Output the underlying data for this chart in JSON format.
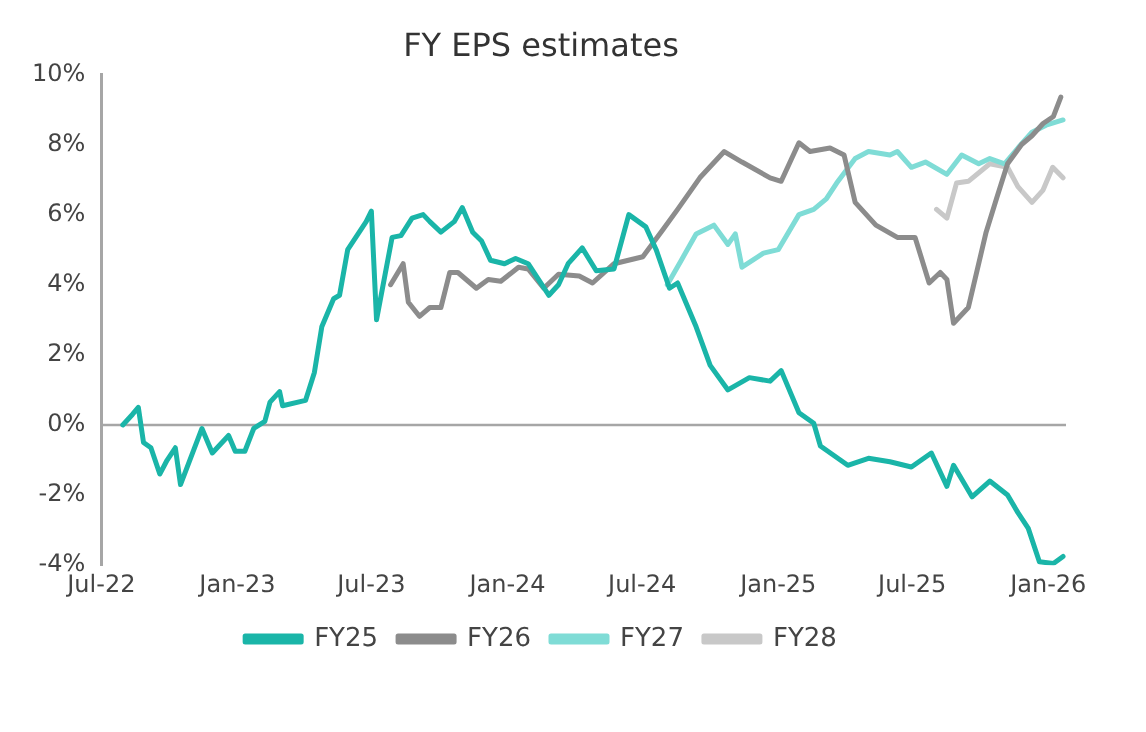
{
  "chart_data": {
    "type": "line",
    "title": "FY EPS estimates",
    "xlim": [
      "2022-07-01",
      "2026-01-25"
    ],
    "xticks": [
      {
        "value": "2022-07-01",
        "label": "Jul-22"
      },
      {
        "value": "2023-01-01",
        "label": "Jan-23"
      },
      {
        "value": "2023-07-01",
        "label": "Jul-23"
      },
      {
        "value": "2024-01-01",
        "label": "Jan-24"
      },
      {
        "value": "2024-07-01",
        "label": "Jul-24"
      },
      {
        "value": "2025-01-01",
        "label": "Jan-25"
      },
      {
        "value": "2025-07-01",
        "label": "Jul-25"
      },
      {
        "value": "2026-01-01",
        "label": "Jan-26"
      }
    ],
    "ylim": [
      -4,
      10
    ],
    "yticks": [
      {
        "value": -4,
        "label": "-4%"
      },
      {
        "value": -2,
        "label": "-2%"
      },
      {
        "value": 0,
        "label": "0%"
      },
      {
        "value": 2,
        "label": "2%"
      },
      {
        "value": 4,
        "label": "4%"
      },
      {
        "value": 6,
        "label": "6%"
      },
      {
        "value": 8,
        "label": "8%"
      },
      {
        "value": 10,
        "label": "10%"
      }
    ],
    "grid": false,
    "legend": "bottom",
    "marker": "none",
    "line_style": "solid",
    "ref_lines": [
      {
        "axis": "y",
        "value": 0,
        "color": "#a6a6a6"
      }
    ],
    "series": [
      {
        "name": "FY25",
        "color": "#1ab5a8",
        "x": [
          "2022-07-30",
          "2022-08-12",
          "2022-08-20",
          "2022-08-27",
          "2022-09-06",
          "2022-09-18",
          "2022-09-28",
          "2022-10-09",
          "2022-10-16",
          "2022-11-14",
          "2022-11-28",
          "2022-12-20",
          "2022-12-29",
          "2023-01-11",
          "2023-01-23",
          "2023-02-07",
          "2023-02-14",
          "2023-02-27",
          "2023-03-03",
          "2023-04-03",
          "2023-04-15",
          "2023-04-25",
          "2023-05-11",
          "2023-05-19",
          "2023-05-30",
          "2023-06-24",
          "2023-07-01",
          "2023-07-08",
          "2023-07-29",
          "2023-08-10",
          "2023-08-25",
          "2023-09-09",
          "2023-09-18",
          "2023-10-03",
          "2023-10-21",
          "2023-11-01",
          "2023-11-15",
          "2023-11-27",
          "2023-12-09",
          "2023-12-28",
          "2024-01-12",
          "2024-01-29",
          "2024-02-26",
          "2024-03-10",
          "2024-03-23",
          "2024-04-11",
          "2024-04-30",
          "2024-05-24",
          "2024-06-13",
          "2024-07-06",
          "2024-07-20",
          "2024-08-07",
          "2024-08-18",
          "2024-09-12",
          "2024-10-01",
          "2024-10-25",
          "2024-11-23",
          "2024-12-21",
          "2025-01-05",
          "2025-01-29",
          "2025-02-18",
          "2025-02-27",
          "2025-04-05",
          "2025-05-03",
          "2025-06-01",
          "2025-06-30",
          "2025-07-27",
          "2025-08-17",
          "2025-08-26",
          "2025-09-20",
          "2025-10-14",
          "2025-11-07",
          "2025-11-21",
          "2025-12-05",
          "2025-12-20",
          "2026-01-08",
          "2026-01-21"
        ],
        "values": [
          0,
          0.3,
          0.5,
          -0.5,
          -0.65,
          -1.4,
          -1.0,
          -0.65,
          -1.7,
          -0.1,
          -0.8,
          -0.3,
          -0.75,
          -0.75,
          -0.1,
          0.1,
          0.65,
          0.95,
          0.55,
          0.7,
          1.5,
          2.8,
          3.6,
          3.7,
          5.0,
          5.8,
          6.1,
          3.0,
          5.35,
          5.4,
          5.9,
          6.0,
          5.8,
          5.5,
          5.8,
          6.2,
          5.5,
          5.25,
          4.7,
          4.6,
          4.75,
          4.6,
          3.7,
          4.0,
          4.6,
          5.05,
          4.4,
          4.45,
          6.0,
          5.65,
          5.0,
          3.9,
          4.05,
          2.8,
          1.7,
          1.0,
          1.35,
          1.25,
          1.55,
          0.35,
          0.05,
          -0.6,
          -1.15,
          -0.95,
          -1.05,
          -1.2,
          -0.8,
          -1.75,
          -1.15,
          -2.05,
          -1.6,
          -2.0,
          -2.5,
          -2.95,
          -3.9,
          -3.95,
          -3.75
        ]
      },
      {
        "name": "FY26",
        "color": "#8c8c8c",
        "x": [
          "2023-07-27",
          "2023-08-13",
          "2023-08-20",
          "2023-09-04",
          "2023-09-18",
          "2023-10-03",
          "2023-10-15",
          "2023-10-26",
          "2023-11-20",
          "2023-12-06",
          "2023-12-23",
          "2024-01-16",
          "2024-01-29",
          "2024-02-19",
          "2024-03-10",
          "2024-04-07",
          "2024-04-25",
          "2024-05-24",
          "2024-07-02",
          "2024-07-30",
          "2024-08-18",
          "2024-09-17",
          "2024-10-20",
          "2024-11-13",
          "2024-12-21",
          "2025-01-05",
          "2025-01-29",
          "2025-02-13",
          "2025-03-12",
          "2025-03-31",
          "2025-04-15",
          "2025-05-13",
          "2025-06-11",
          "2025-07-05",
          "2025-07-24",
          "2025-08-08",
          "2025-08-17",
          "2025-08-26",
          "2025-09-15",
          "2025-10-09",
          "2025-10-23",
          "2025-11-07",
          "2025-11-26",
          "2025-12-10",
          "2025-12-25",
          "2026-01-08",
          "2026-01-18"
        ],
        "values": [
          4.0,
          4.6,
          3.5,
          3.1,
          3.35,
          3.35,
          4.35,
          4.35,
          3.9,
          4.15,
          4.1,
          4.5,
          4.45,
          3.9,
          4.3,
          4.25,
          4.05,
          4.6,
          4.8,
          5.6,
          6.15,
          7.05,
          7.8,
          7.5,
          7.05,
          6.95,
          8.05,
          7.8,
          7.9,
          7.7,
          6.35,
          5.7,
          5.35,
          5.35,
          4.05,
          4.35,
          4.15,
          2.9,
          3.35,
          5.5,
          6.45,
          7.45,
          8.0,
          8.25,
          8.6,
          8.8,
          9.35
        ]
      },
      {
        "name": "FY27",
        "color": "#7fdcd6",
        "x": [
          "2024-08-04",
          "2024-08-23",
          "2024-09-12",
          "2024-10-06",
          "2024-10-25",
          "2024-11-04",
          "2024-11-13",
          "2024-12-12",
          "2025-01-01",
          "2025-01-29",
          "2025-02-18",
          "2025-03-07",
          "2025-03-21",
          "2025-04-15",
          "2025-05-03",
          "2025-06-01",
          "2025-06-11",
          "2025-06-30",
          "2025-07-19",
          "2025-08-17",
          "2025-09-06",
          "2025-09-29",
          "2025-10-14",
          "2025-11-03",
          "2025-11-21",
          "2025-12-10",
          "2025-12-29",
          "2026-01-21"
        ],
        "values": [
          4.0,
          4.7,
          5.45,
          5.7,
          5.15,
          5.45,
          4.5,
          4.9,
          5.0,
          6.0,
          6.15,
          6.45,
          6.9,
          7.6,
          7.8,
          7.7,
          7.8,
          7.35,
          7.5,
          7.15,
          7.7,
          7.45,
          7.6,
          7.45,
          7.9,
          8.35,
          8.55,
          8.7
        ]
      },
      {
        "name": "FY28",
        "color": "#c8c8c8",
        "x": [
          "2025-08-03",
          "2025-08-17",
          "2025-08-30",
          "2025-09-15",
          "2025-10-14",
          "2025-11-07",
          "2025-11-21",
          "2025-12-10",
          "2025-12-25",
          "2026-01-07",
          "2026-01-21"
        ],
        "values": [
          6.15,
          5.9,
          6.9,
          6.95,
          7.45,
          7.35,
          6.8,
          6.35,
          6.7,
          7.35,
          7.05
        ]
      }
    ]
  }
}
